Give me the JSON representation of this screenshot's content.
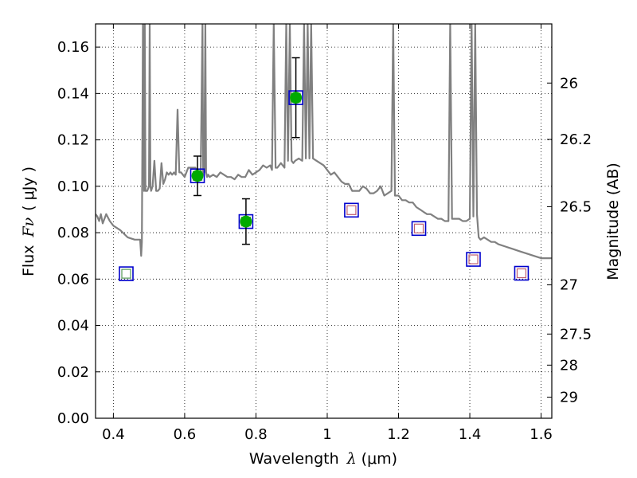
{
  "chart_data": {
    "type": "line",
    "xlabel": "Wavelength",
    "xlabel_symbol": "λ",
    "xlabel_unit": "(μm)",
    "ylabel": "Flux",
    "ylabel_symbol": "Fν",
    "ylabel_unit": "( μJy )",
    "ylabel_right": "Magnitude (AB)",
    "xlim": [
      0.35,
      1.63
    ],
    "ylim": [
      0.0,
      0.17
    ],
    "grid": true,
    "x_ticks": [
      0.4,
      0.6,
      0.8,
      1.0,
      1.2,
      1.4,
      1.6
    ],
    "x_tick_labels": [
      "0.4",
      "0.6",
      "0.8",
      "1",
      "1.2",
      "1.4",
      "1.6"
    ],
    "y_ticks": [
      0.0,
      0.02,
      0.04,
      0.06,
      0.08,
      0.1,
      0.12,
      0.14,
      0.16
    ],
    "y_tick_labels": [
      "0.00",
      "0.02",
      "0.04",
      "0.06",
      "0.08",
      "0.10",
      "0.12",
      "0.14",
      "0.16"
    ],
    "right_ticks": [
      {
        "label": "26",
        "flux": 0.1445
      },
      {
        "label": "26.2",
        "flux": 0.1202
      },
      {
        "label": "26.5",
        "flux": 0.0912
      },
      {
        "label": "27",
        "flux": 0.0575
      },
      {
        "label": "27.5",
        "flux": 0.0363
      },
      {
        "label": "28",
        "flux": 0.0229
      },
      {
        "label": "29",
        "flux": 0.0091
      }
    ],
    "series": [
      {
        "type": "line",
        "color": "#808080",
        "x": [
          0.35,
          0.355,
          0.36,
          0.365,
          0.37,
          0.38,
          0.39,
          0.4,
          0.42,
          0.44,
          0.46,
          0.47,
          0.475,
          0.478,
          0.48,
          0.483,
          0.486,
          0.488,
          0.49,
          0.495,
          0.5,
          0.502,
          0.504,
          0.506,
          0.51,
          0.515,
          0.52,
          0.525,
          0.53,
          0.535,
          0.54,
          0.545,
          0.55,
          0.555,
          0.56,
          0.565,
          0.57,
          0.575,
          0.58,
          0.585,
          0.59,
          0.6,
          0.61,
          0.62,
          0.63,
          0.64,
          0.645,
          0.65,
          0.652,
          0.655,
          0.658,
          0.66,
          0.663,
          0.666,
          0.67,
          0.68,
          0.69,
          0.7,
          0.71,
          0.72,
          0.73,
          0.74,
          0.75,
          0.76,
          0.77,
          0.78,
          0.79,
          0.8,
          0.81,
          0.82,
          0.83,
          0.84,
          0.845,
          0.85,
          0.855,
          0.86,
          0.87,
          0.88,
          0.885,
          0.89,
          0.895,
          0.9,
          0.905,
          0.91,
          0.92,
          0.93,
          0.935,
          0.94,
          0.945,
          0.95,
          0.955,
          0.96,
          0.97,
          0.98,
          0.99,
          1.0,
          1.01,
          1.02,
          1.03,
          1.04,
          1.05,
          1.06,
          1.07,
          1.08,
          1.09,
          1.1,
          1.11,
          1.12,
          1.13,
          1.14,
          1.15,
          1.16,
          1.17,
          1.18,
          1.185,
          1.19,
          1.195,
          1.2,
          1.21,
          1.22,
          1.23,
          1.24,
          1.25,
          1.26,
          1.27,
          1.28,
          1.29,
          1.3,
          1.31,
          1.32,
          1.33,
          1.34,
          1.345,
          1.35,
          1.355,
          1.36,
          1.37,
          1.38,
          1.39,
          1.4,
          1.405,
          1.41,
          1.415,
          1.42,
          1.425,
          1.43,
          1.44,
          1.45,
          1.46,
          1.47,
          1.48,
          1.5,
          1.52,
          1.54,
          1.56,
          1.58,
          1.6,
          1.62,
          1.63
        ],
        "y": [
          0.088,
          0.087,
          0.085,
          0.088,
          0.084,
          0.088,
          0.085,
          0.083,
          0.081,
          0.078,
          0.077,
          0.077,
          0.077,
          0.07,
          0.076,
          0.17,
          0.098,
          0.17,
          0.098,
          0.098,
          0.1,
          0.17,
          0.1,
          0.098,
          0.1,
          0.111,
          0.098,
          0.098,
          0.099,
          0.11,
          0.101,
          0.103,
          0.106,
          0.105,
          0.106,
          0.105,
          0.106,
          0.105,
          0.133,
          0.106,
          0.106,
          0.104,
          0.108,
          0.108,
          0.108,
          0.106,
          0.106,
          0.17,
          0.105,
          0.106,
          0.17,
          0.106,
          0.104,
          0.105,
          0.104,
          0.105,
          0.104,
          0.106,
          0.105,
          0.104,
          0.104,
          0.103,
          0.105,
          0.104,
          0.104,
          0.107,
          0.105,
          0.106,
          0.107,
          0.109,
          0.108,
          0.109,
          0.107,
          0.17,
          0.108,
          0.108,
          0.11,
          0.108,
          0.17,
          0.111,
          0.17,
          0.111,
          0.11,
          0.111,
          0.112,
          0.111,
          0.17,
          0.112,
          0.17,
          0.112,
          0.17,
          0.112,
          0.111,
          0.11,
          0.109,
          0.107,
          0.105,
          0.106,
          0.104,
          0.102,
          0.101,
          0.101,
          0.098,
          0.098,
          0.098,
          0.1,
          0.099,
          0.097,
          0.097,
          0.098,
          0.1,
          0.096,
          0.097,
          0.098,
          0.17,
          0.096,
          0.096,
          0.096,
          0.094,
          0.094,
          0.093,
          0.093,
          0.091,
          0.09,
          0.089,
          0.088,
          0.088,
          0.087,
          0.086,
          0.086,
          0.085,
          0.085,
          0.17,
          0.086,
          0.086,
          0.086,
          0.086,
          0.085,
          0.085,
          0.086,
          0.17,
          0.087,
          0.17,
          0.088,
          0.078,
          0.077,
          0.078,
          0.077,
          0.076,
          0.076,
          0.075,
          0.074,
          0.073,
          0.072,
          0.071,
          0.07,
          0.069,
          0.069,
          0.069
        ]
      }
    ],
    "photometry_points": [
      {
        "x": 0.636,
        "y": 0.1045,
        "err": 0.0085,
        "color": "#00aa00"
      },
      {
        "x": 0.772,
        "y": 0.0848,
        "err": 0.0098,
        "color": "#00aa00"
      },
      {
        "x": 0.912,
        "y": 0.1382,
        "err": 0.0172,
        "color": "#00aa00"
      }
    ],
    "model_squares": [
      {
        "x": 0.436,
        "y": 0.0623,
        "inner_color": "#559955"
      },
      {
        "x": 0.636,
        "y": 0.1045,
        "inner_color": "#559955"
      },
      {
        "x": 0.772,
        "y": 0.0848,
        "inner_color": "#559955"
      },
      {
        "x": 0.912,
        "y": 0.1382,
        "inner_color": "#559955"
      },
      {
        "x": 1.068,
        "y": 0.0897,
        "inner_color": "#c06070"
      },
      {
        "x": 1.257,
        "y": 0.0818,
        "inner_color": "#c06070"
      },
      {
        "x": 1.41,
        "y": 0.0685,
        "inner_color": "#c06070"
      },
      {
        "x": 1.545,
        "y": 0.0625,
        "inner_color": "#c06070"
      }
    ],
    "square_outer_color": "#0000cc"
  }
}
